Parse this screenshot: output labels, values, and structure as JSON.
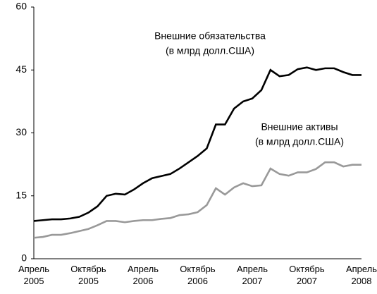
{
  "chart_data": {
    "type": "line",
    "categories": [
      "Апрель 2005",
      null,
      null,
      null,
      null,
      null,
      "Октябрь 2005",
      null,
      null,
      null,
      null,
      null,
      "Апрель 2006",
      null,
      null,
      null,
      null,
      null,
      "Октябрь 2006",
      null,
      null,
      null,
      null,
      null,
      "Апрель 2007",
      null,
      null,
      null,
      null,
      null,
      "Октябрь 2007",
      null,
      null,
      null,
      null,
      null,
      "Апрель 2008"
    ],
    "series": [
      {
        "name": "Внешние обязательства",
        "note": "(в млрд долл.США)",
        "color": "#000000",
        "values": [
          9,
          9.2,
          9.4,
          9.4,
          9.6,
          10,
          11,
          12.5,
          15,
          15.5,
          15.3,
          16.5,
          18,
          19.2,
          19.7,
          20.2,
          21.5,
          23,
          24.5,
          26.3,
          32,
          32,
          35.8,
          37.5,
          38.2,
          40.2,
          45,
          43.5,
          43.8,
          45.2,
          45.6,
          45,
          45.4,
          45.4,
          44.5,
          43.8,
          43.8
        ]
      },
      {
        "name": "Внешние активы",
        "note": "(в млрд долл.США)",
        "color": "#999999",
        "values": [
          5,
          5.2,
          5.7,
          5.7,
          6.1,
          6.6,
          7.1,
          8,
          9,
          9,
          8.7,
          9,
          9.2,
          9.2,
          9.5,
          9.7,
          10.4,
          10.6,
          11.1,
          12.8,
          16.8,
          15.3,
          17,
          18,
          17.3,
          17.5,
          21.5,
          20.2,
          19.8,
          20.6,
          20.6,
          21.4,
          23,
          23,
          22,
          22.4,
          22.4
        ]
      }
    ],
    "ylim": [
      0,
      60
    ],
    "yticks": [
      0,
      15,
      30,
      45,
      60
    ],
    "grid": false
  }
}
